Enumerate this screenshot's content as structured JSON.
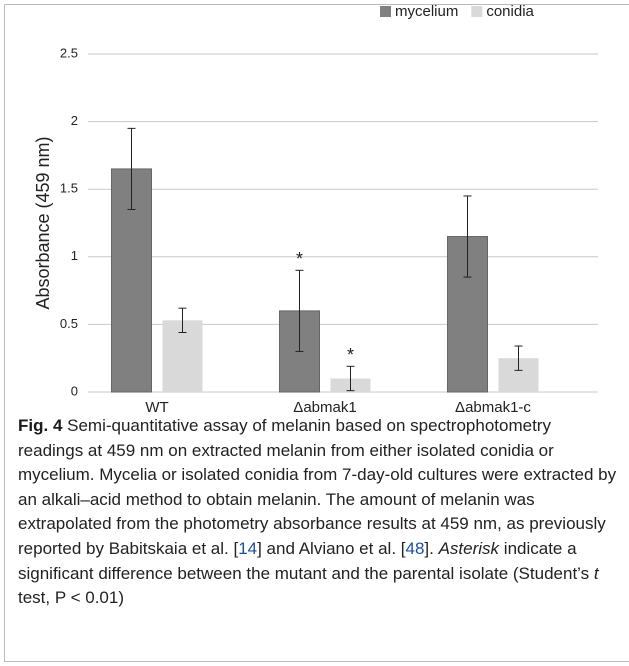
{
  "chart_data": {
    "type": "bar",
    "ylabel": "Absorbance (459 nm)",
    "categories": [
      "WT",
      "Δabmak1",
      "Δabmak1-c"
    ],
    "series": [
      {
        "name": "mycelium",
        "color": "#808080",
        "values": [
          1.65,
          0.6,
          1.15
        ],
        "errors": [
          0.3,
          0.3,
          0.3
        ]
      },
      {
        "name": "conidia",
        "color": "#d9d9d9",
        "values": [
          0.53,
          0.1,
          0.25
        ],
        "errors": [
          0.09,
          0.09,
          0.09
        ]
      }
    ],
    "annotations": [
      {
        "text": "*",
        "series": 0,
        "category": 1
      },
      {
        "text": "*",
        "series": 1,
        "category": 1
      }
    ],
    "ylim": [
      0,
      2.5
    ],
    "yticks": [
      0,
      0.5,
      1,
      1.5,
      2,
      2.5
    ],
    "grid": true,
    "legend": "top-right"
  },
  "caption": {
    "label": "Fig. 4",
    "parts": [
      {
        "text": " Semi-quantitative assay of melanin based on spectrophotometry readings at 459 nm on extracted melanin from either isolated conidia or mycelium. Mycelia or isolated conidia from 7-day-old cultures were extracted by an alkali–acid method to obtain melanin. The amount of melanin was extrapolated from the photometry absorbance results at 459 nm, as previously reported by Babitskaia et al. [",
        "style": "plain"
      },
      {
        "text": "14",
        "style": "link"
      },
      {
        "text": "] and Alviano et al. [",
        "style": "plain"
      },
      {
        "text": "48",
        "style": "link"
      },
      {
        "text": "]. ",
        "style": "plain"
      },
      {
        "text": "Asterisk",
        "style": "italic"
      },
      {
        "text": " indicate a significant difference between the mutant and the parental isolate (Student’s ",
        "style": "plain"
      },
      {
        "text": "t",
        "style": "italic"
      },
      {
        "text": " test, P < 0.01)",
        "style": "plain"
      }
    ]
  }
}
